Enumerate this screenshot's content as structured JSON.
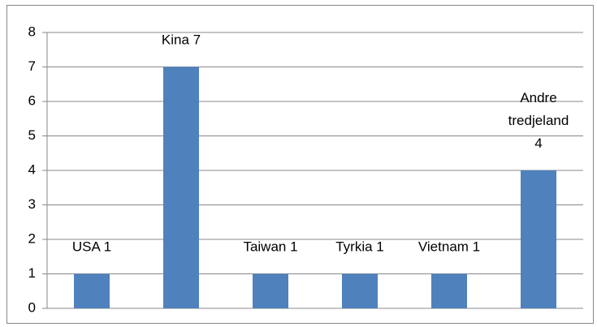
{
  "chart_data": {
    "type": "bar",
    "categories": [
      null,
      null,
      null,
      null,
      null,
      null
    ],
    "values": [
      1,
      7,
      1,
      1,
      1,
      4
    ],
    "value_labels": [
      "USA 1",
      "Kina 7",
      "Taiwan 1",
      "Tyrkia 1",
      "Vietnam 1",
      "Andre tredjeland 4"
    ],
    "color": "#4f81bd",
    "ylim": [
      0,
      8
    ],
    "yticks": [
      0,
      1,
      2,
      3,
      4,
      5,
      6,
      7,
      8
    ],
    "grid": true
  }
}
